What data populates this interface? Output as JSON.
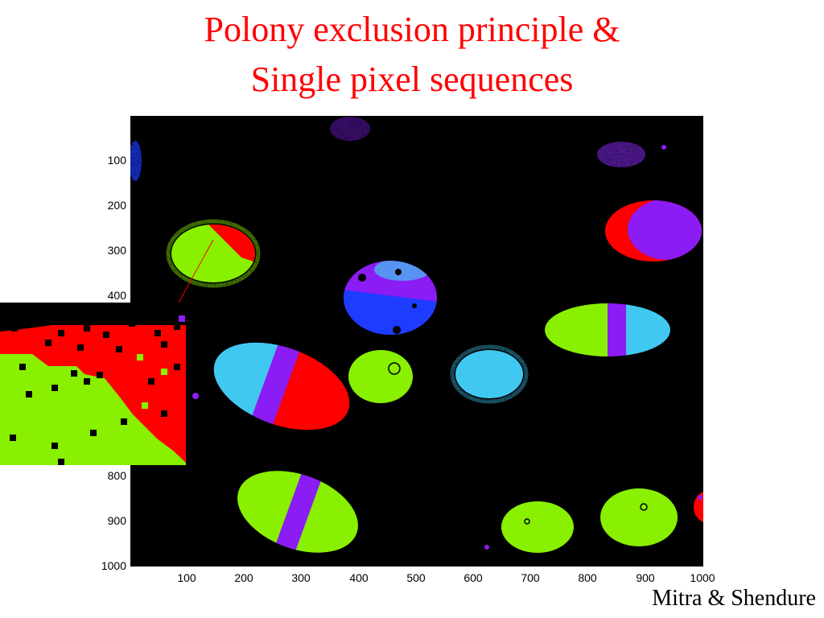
{
  "slide": {
    "title_line1": "Polony exclusion principle &",
    "title_line2": "Single pixel sequences",
    "credit": "Mitra & Shendure"
  },
  "image": {
    "description_icon": "false-color-polony-image",
    "x_ticks": [
      "100",
      "200",
      "300",
      "400",
      "500",
      "600",
      "700",
      "800",
      "900",
      "1000"
    ],
    "y_ticks": [
      "100",
      "200",
      "300",
      "400",
      "800",
      "900",
      "1000"
    ],
    "colors": {
      "red": "#ff0000",
      "green": "#88f000",
      "cyan": "#40c8f0",
      "purple": "#8c1cf4",
      "blue": "#1e3cff",
      "background": "#000000"
    }
  }
}
